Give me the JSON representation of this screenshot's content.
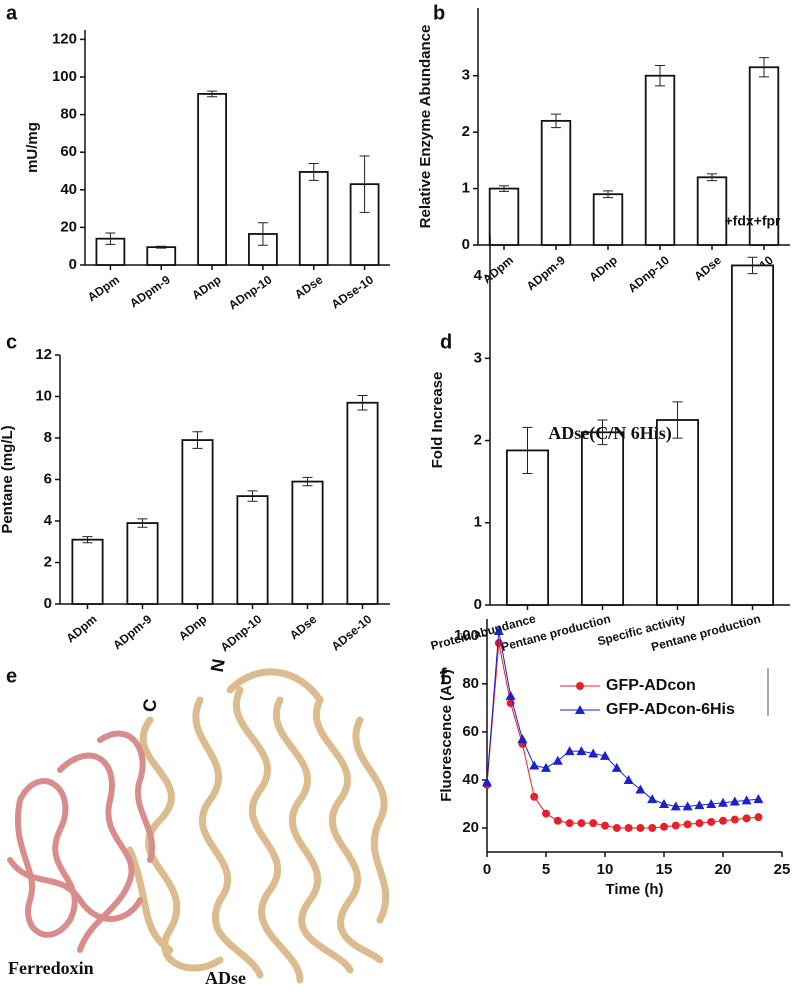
{
  "chart_data": [
    {
      "type": "bar",
      "panel_label": "a",
      "ylabel": "mU/mg",
      "categories": [
        "ADpm",
        "ADpm-9",
        "ADnp",
        "ADnp-10",
        "ADse",
        "ADse-10"
      ],
      "values": [
        14,
        9.5,
        91,
        16.5,
        49.5,
        43
      ],
      "errors": [
        3,
        0.5,
        1.5,
        6,
        4.5,
        15
      ],
      "ylim": [
        0,
        125
      ],
      "yticks": [
        0,
        20,
        40,
        60,
        80,
        100,
        120
      ],
      "color": "#ffffff"
    },
    {
      "type": "bar",
      "panel_label": "b",
      "ylabel": "Relative Enzyme Abundance",
      "categories": [
        "ADpm",
        "ADpm-9",
        "ADnp",
        "ADnp-10",
        "ADse",
        "ADse-10"
      ],
      "values": [
        1.0,
        2.2,
        0.9,
        3.0,
        1.2,
        3.15
      ],
      "errors": [
        0.05,
        0.12,
        0.06,
        0.18,
        0.06,
        0.17
      ],
      "ylim": [
        0,
        4.2
      ],
      "yticks": [
        0,
        1,
        2,
        3
      ],
      "color": "#ffffff"
    },
    {
      "type": "bar",
      "panel_label": "c",
      "ylabel": "Pentane (mg/L)",
      "categories": [
        "ADpm",
        "ADpm-9",
        "ADnp",
        "ADnp-10",
        "ADse",
        "ADse-10"
      ],
      "values": [
        3.1,
        3.9,
        7.9,
        5.2,
        5.9,
        9.7
      ],
      "errors": [
        0.15,
        0.2,
        0.4,
        0.25,
        0.2,
        0.35
      ],
      "ylim": [
        0,
        12
      ],
      "yticks": [
        0,
        2,
        4,
        6,
        8,
        10,
        12
      ],
      "color": "#ffffff"
    },
    {
      "type": "bar",
      "panel_label": "d",
      "ylabel": "Fold Increase",
      "title": "ADse(C/N 6His)",
      "annotation": "+fdx+fpr",
      "categories": [
        "Protein abundance",
        "Pentane production",
        "Specific activity",
        "Pentane production"
      ],
      "values": [
        1.88,
        2.1,
        2.25,
        4.13
      ],
      "errors": [
        0.28,
        0.15,
        0.22,
        0.1
      ],
      "ylim": [
        0,
        4.5
      ],
      "yticks": [
        0,
        1,
        2,
        3,
        4
      ],
      "color": "#ffffff"
    },
    {
      "type": "line",
      "panel_label": "f",
      "xlabel": "Time (h)",
      "ylabel": "Fluorescence (AU)",
      "x": [
        0,
        1,
        2,
        3,
        4,
        5,
        6,
        7,
        8,
        9,
        10,
        11,
        12,
        13,
        14,
        15,
        16,
        17,
        18,
        19,
        20,
        21,
        22,
        23
      ],
      "series": [
        {
          "name": "GFP-ADcon",
          "color": "#e8202a",
          "marker": "circle",
          "values": [
            38,
            97,
            72,
            55,
            33,
            26,
            23,
            22,
            22,
            22,
            21,
            20,
            20,
            20,
            20,
            20.5,
            21,
            21.5,
            22,
            22.5,
            23,
            23.5,
            24,
            24.5
          ]
        },
        {
          "name": "GFP-ADcon-6His",
          "color": "#1a22c8",
          "marker": "triangle",
          "values": [
            39,
            102,
            75,
            57,
            46,
            45,
            48,
            52,
            52,
            51,
            50,
            45,
            40,
            36,
            32,
            30,
            29,
            29,
            29.5,
            30,
            30.5,
            31,
            31.5,
            32
          ]
        }
      ],
      "xlim": [
        0,
        25
      ],
      "xticks": [
        0,
        5,
        10,
        15,
        20,
        25
      ],
      "ylim": [
        10,
        107
      ],
      "yticks": [
        20,
        40,
        60,
        80,
        100
      ],
      "legend": "upper right"
    }
  ],
  "structure": {
    "panel_label": "e",
    "ferredoxin": "Ferredoxin",
    "adse": "ADse",
    "c_terminus": "C",
    "n_terminus": "N"
  }
}
